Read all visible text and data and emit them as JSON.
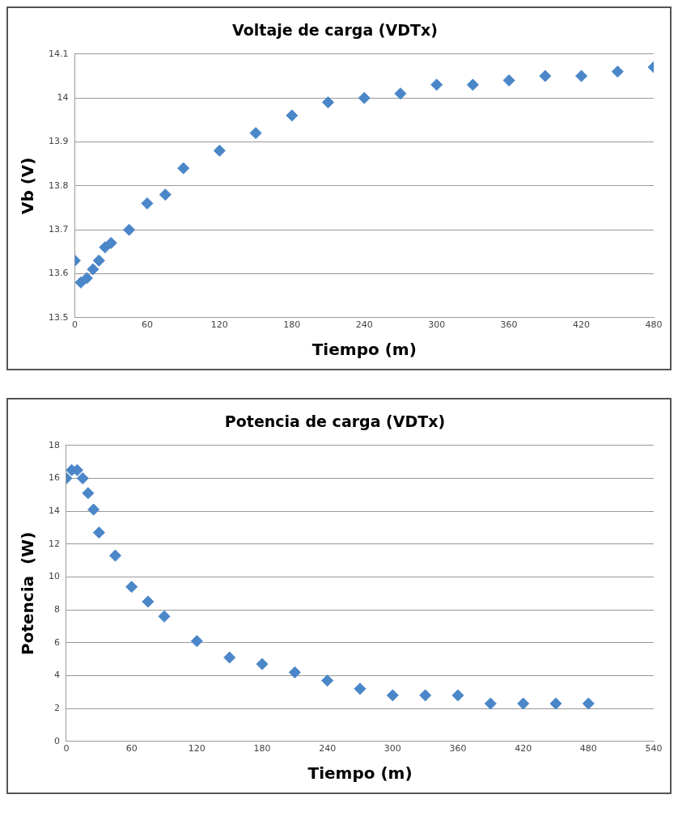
{
  "chart_data": [
    {
      "type": "scatter",
      "title": "Voltaje de carga (VDTx)",
      "xlabel": "Tiempo (m)",
      "ylabel": "Vb (V)",
      "x": [
        0,
        5,
        10,
        15,
        20,
        25,
        30,
        45,
        60,
        75,
        90,
        120,
        150,
        180,
        210,
        240,
        270,
        300,
        330,
        360,
        390,
        420,
        450,
        480
      ],
      "series": [
        {
          "color": "#4a86c8",
          "values": [
            13.63,
            13.58,
            13.59,
            13.61,
            13.63,
            13.66,
            13.67,
            13.7,
            13.76,
            13.78,
            13.84,
            13.88,
            13.92,
            13.96,
            13.99,
            14.0,
            14.01,
            14.03,
            14.03,
            14.04,
            14.05,
            14.05,
            14.06,
            14.07
          ]
        }
      ],
      "xlim": [
        0,
        480
      ],
      "xticks": [
        0,
        60,
        120,
        180,
        240,
        300,
        360,
        420,
        480
      ],
      "ylim": [
        13.5,
        14.1
      ],
      "yticks": [
        13.5,
        13.6,
        13.7,
        13.8,
        13.9,
        14,
        14.1
      ],
      "grid": "y",
      "legend": false,
      "marker": "diamond"
    },
    {
      "type": "scatter",
      "title": "Potencia de carga (VDTx)",
      "xlabel": "Tiempo (m)",
      "ylabel": "Potencia  (W)",
      "x": [
        0,
        5,
        10,
        15,
        20,
        25,
        30,
        45,
        60,
        75,
        90,
        120,
        150,
        180,
        210,
        240,
        270,
        300,
        330,
        360,
        390,
        420,
        450,
        480
      ],
      "series": [
        {
          "color": "#4a86c8",
          "values": [
            16,
            16.5,
            16.5,
            16,
            15.1,
            14.1,
            12.7,
            11.3,
            9.4,
            8.5,
            7.6,
            6.1,
            5.1,
            4.7,
            4.2,
            3.7,
            3.2,
            2.8,
            2.8,
            2.8,
            2.3,
            2.3,
            2.3,
            2.3
          ]
        }
      ],
      "xlim": [
        0,
        540
      ],
      "xticks": [
        0,
        60,
        120,
        180,
        240,
        300,
        360,
        420,
        480,
        540
      ],
      "ylim": [
        0,
        18
      ],
      "yticks": [
        0,
        2,
        4,
        6,
        8,
        10,
        12,
        14,
        16,
        18
      ],
      "grid": "y",
      "legend": false,
      "marker": "diamond"
    }
  ]
}
